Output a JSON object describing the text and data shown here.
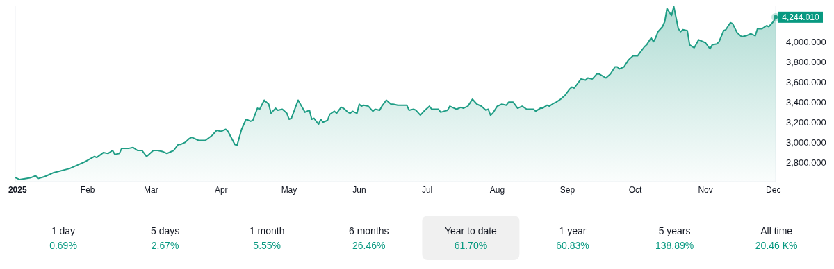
{
  "chart_data": {
    "type": "area",
    "x": [
      "2024-12-31",
      "2025-01-02",
      "2025-01-07",
      "2025-01-09",
      "2025-01-10",
      "2025-01-13",
      "2025-01-17",
      "2025-01-24",
      "2025-01-28",
      "2025-01-31",
      "2025-02-04",
      "2025-02-05",
      "2025-02-08",
      "2025-02-10",
      "2025-02-12",
      "2025-02-13",
      "2025-02-15",
      "2025-02-16",
      "2025-02-19",
      "2025-02-21",
      "2025-02-23",
      "2025-02-25",
      "2025-02-27",
      "2025-03-02",
      "2025-03-04",
      "2025-03-06",
      "2025-03-08",
      "2025-03-11",
      "2025-03-13",
      "2025-03-14",
      "2025-03-16",
      "2025-03-18",
      "2025-03-19",
      "2025-03-22",
      "2025-03-25",
      "2025-03-28",
      "2025-03-30",
      "2025-04-01",
      "2025-04-03",
      "2025-04-04",
      "2025-04-07",
      "2025-04-08",
      "2025-04-10",
      "2025-04-12",
      "2025-04-14",
      "2025-04-15",
      "2025-04-17",
      "2025-04-18",
      "2025-04-20",
      "2025-04-22",
      "2025-04-23",
      "2025-04-25",
      "2025-04-26",
      "2025-04-28",
      "2025-04-30",
      "2025-05-01",
      "2025-05-02",
      "2025-05-05",
      "2025-05-08",
      "2025-05-10",
      "2025-05-11",
      "2025-05-12",
      "2025-05-14",
      "2025-05-15",
      "2025-05-16",
      "2025-05-18",
      "2025-05-19",
      "2025-05-21",
      "2025-05-22",
      "2025-05-24",
      "2025-05-25",
      "2025-05-27",
      "2025-05-28",
      "2025-05-29",
      "2025-05-31",
      "2025-06-01",
      "2025-06-02",
      "2025-06-03",
      "2025-06-05",
      "2025-06-07",
      "2025-06-08",
      "2025-06-10",
      "2025-06-11",
      "2025-06-13",
      "2025-06-15",
      "2025-06-16",
      "2025-06-18",
      "2025-06-22",
      "2025-06-23",
      "2025-06-25",
      "2025-06-26",
      "2025-06-28",
      "2025-06-30",
      "2025-07-02",
      "2025-07-03",
      "2025-07-05",
      "2025-07-06",
      "2025-07-07",
      "2025-07-10",
      "2025-07-11",
      "2025-07-13",
      "2025-07-14",
      "2025-07-16",
      "2025-07-17",
      "2025-07-19",
      "2025-07-21",
      "2025-07-23",
      "2025-07-25",
      "2025-07-27",
      "2025-07-28",
      "2025-07-29",
      "2025-07-30",
      "2025-08-01",
      "2025-08-03",
      "2025-08-05",
      "2025-08-06",
      "2025-08-08",
      "2025-08-10",
      "2025-08-12",
      "2025-08-14",
      "2025-08-17",
      "2025-08-18",
      "2025-08-20",
      "2025-08-21",
      "2025-08-23",
      "2025-08-24",
      "2025-08-26",
      "2025-08-27",
      "2025-08-29",
      "2025-08-31",
      "2025-09-02",
      "2025-09-03",
      "2025-09-04",
      "2025-09-07",
      "2025-09-09",
      "2025-09-10",
      "2025-09-12",
      "2025-09-14",
      "2025-09-15",
      "2025-09-18",
      "2025-09-20",
      "2025-09-22",
      "2025-09-23",
      "2025-09-24",
      "2025-09-26",
      "2025-09-28",
      "2025-09-30",
      "2025-10-02",
      "2025-10-03",
      "2025-10-05",
      "2025-10-06",
      "2025-10-08",
      "2025-10-09",
      "2025-10-10",
      "2025-10-11",
      "2025-10-13",
      "2025-10-14",
      "2025-10-15",
      "2025-10-17",
      "2025-10-18",
      "2025-10-20",
      "2025-10-21",
      "2025-10-22",
      "2025-10-24",
      "2025-10-25",
      "2025-10-27",
      "2025-10-29",
      "2025-10-31",
      "2025-11-01",
      "2025-11-03",
      "2025-11-04",
      "2025-11-06",
      "2025-11-07",
      "2025-11-09",
      "2025-11-10",
      "2025-11-12",
      "2025-11-13",
      "2025-11-15",
      "2025-11-17",
      "2025-11-19",
      "2025-11-21",
      "2025-11-22",
      "2025-11-23",
      "2025-11-24",
      "2025-11-26",
      "2025-11-28",
      "2025-11-29",
      "2025-12-01",
      "2025-12-02"
    ],
    "series": [
      {
        "color": "#1f9d85",
        "values": [
          2650,
          2630,
          2650,
          2670,
          2640,
          2660,
          2700,
          2740,
          2780,
          2810,
          2860,
          2850,
          2900,
          2890,
          2920,
          2880,
          2890,
          2940,
          2940,
          2950,
          2920,
          2920,
          2860,
          2920,
          2920,
          2910,
          2890,
          2920,
          2980,
          2980,
          3000,
          3040,
          3050,
          3020,
          3020,
          3070,
          3120,
          3110,
          3130,
          3110,
          2980,
          2970,
          3130,
          3230,
          3210,
          3220,
          3340,
          3330,
          3420,
          3380,
          3290,
          3340,
          3320,
          3330,
          3290,
          3230,
          3240,
          3420,
          3300,
          3320,
          3230,
          3240,
          3180,
          3230,
          3200,
          3220,
          3280,
          3310,
          3290,
          3350,
          3340,
          3300,
          3290,
          3310,
          3290,
          3380,
          3360,
          3370,
          3360,
          3310,
          3330,
          3320,
          3360,
          3420,
          3380,
          3380,
          3370,
          3370,
          3320,
          3330,
          3320,
          3270,
          3320,
          3360,
          3330,
          3330,
          3330,
          3300,
          3320,
          3360,
          3340,
          3330,
          3350,
          3340,
          3360,
          3430,
          3380,
          3360,
          3320,
          3330,
          3270,
          3290,
          3360,
          3380,
          3370,
          3400,
          3400,
          3340,
          3360,
          3330,
          3330,
          3310,
          3340,
          3340,
          3370,
          3360,
          3390,
          3400,
          3430,
          3470,
          3530,
          3550,
          3540,
          3630,
          3620,
          3640,
          3630,
          3680,
          3680,
          3640,
          3680,
          3750,
          3750,
          3730,
          3750,
          3820,
          3860,
          3860,
          3890,
          3950,
          3970,
          4040,
          4000,
          4040,
          4100,
          4150,
          4200,
          4330,
          4260,
          4350,
          4130,
          4100,
          4120,
          4110,
          3970,
          3940,
          4020,
          4000,
          3990,
          3930,
          3970,
          3980,
          4000,
          4110,
          4120,
          4190,
          4180,
          4090,
          4050,
          4060,
          4080,
          4070,
          4060,
          4130,
          4130,
          4160,
          4150,
          4200,
          4244.01
        ]
      }
    ],
    "xlim": [
      "2024-12-31",
      "2025-12-02"
    ],
    "xticks": [
      {
        "value": "2025-01-01",
        "label": "2025"
      },
      {
        "value": "2025-02-01",
        "label": "Feb"
      },
      {
        "value": "2025-03-01",
        "label": "Mar"
      },
      {
        "value": "2025-04-01",
        "label": "Apr"
      },
      {
        "value": "2025-05-01",
        "label": "May"
      },
      {
        "value": "2025-06-01",
        "label": "Jun"
      },
      {
        "value": "2025-07-01",
        "label": "Jul"
      },
      {
        "value": "2025-08-01",
        "label": "Aug"
      },
      {
        "value": "2025-09-01",
        "label": "Sep"
      },
      {
        "value": "2025-10-01",
        "label": "Oct"
      },
      {
        "value": "2025-11-01",
        "label": "Nov"
      },
      {
        "value": "2025-12-01",
        "label": "Dec"
      }
    ],
    "ylim": [
      2610,
      4360
    ],
    "yticks": [
      {
        "value": 2800,
        "label": "2,800.000"
      },
      {
        "value": 3000,
        "label": "3,000.000"
      },
      {
        "value": 3200,
        "label": "3,200.000"
      },
      {
        "value": 3400,
        "label": "3,400.000"
      },
      {
        "value": 3600,
        "label": "3,600.000"
      },
      {
        "value": 3800,
        "label": "3,800.000"
      },
      {
        "value": 4000,
        "label": "4,000.000"
      }
    ],
    "annotations": [
      {
        "text": "4,244.010",
        "x": "2025-12-02",
        "y": 4244.01
      },
      "1 day",
      "0.69%",
      "5 days",
      "2.67%",
      "1 month",
      "5.55%",
      "6 months",
      "26.46%",
      "Year to date",
      "61.70%",
      "1 year",
      "60.83%",
      "5 years",
      "138.89%",
      "All time",
      "20.46 K%"
    ]
  }
}
